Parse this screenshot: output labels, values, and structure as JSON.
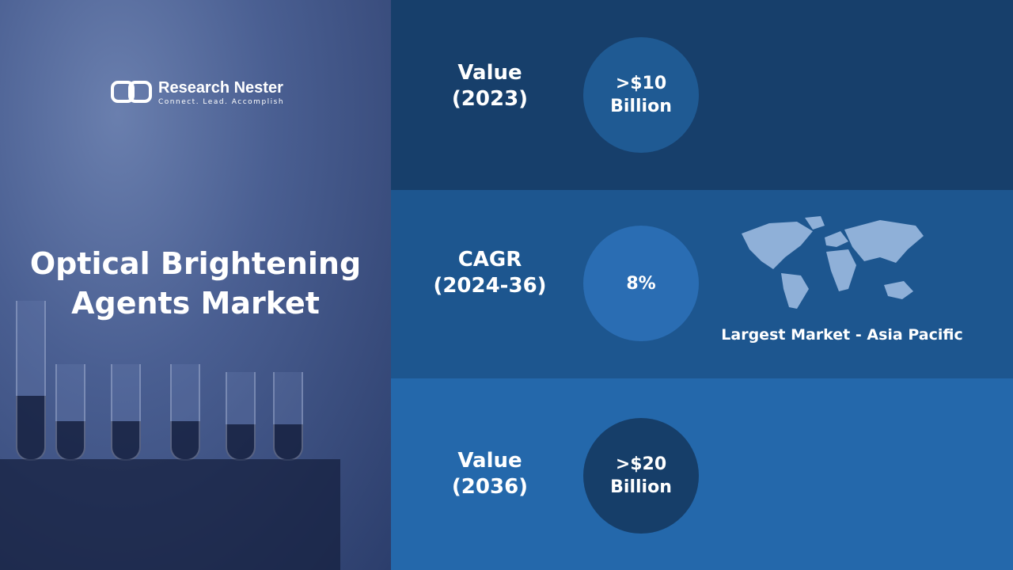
{
  "brand": {
    "name": "Research Nester",
    "tagline": "Connect. Lead. Accomplish"
  },
  "title": "Optical Brightening Agents Market",
  "rows": [
    {
      "label": "Value (2023)",
      "value": ">$10 Billion"
    },
    {
      "label": "CAGR (2024-36)",
      "value": "8%",
      "note": "Largest Market - Asia Pacific"
    },
    {
      "label": "Value (2036)",
      "value": ">$20 Billion"
    }
  ]
}
